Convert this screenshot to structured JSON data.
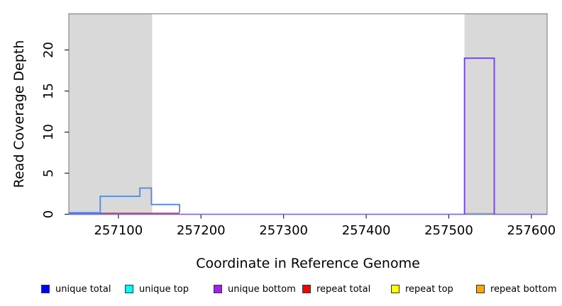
{
  "chart_data": {
    "type": "step-coverage",
    "title": "",
    "xlabel": "Coordinate in Reference Genome",
    "ylabel": "Read Coverage Depth",
    "xlim": [
      257040,
      257619
    ],
    "ylim": [
      0,
      24.4
    ],
    "x_ticks": [
      "257100",
      "257200",
      "257300",
      "257400",
      "257500",
      "257600"
    ],
    "x_tick_values": [
      257100,
      257200,
      257300,
      257400,
      257500,
      257600
    ],
    "y_ticks": [
      "0",
      "5",
      "10",
      "15",
      "20"
    ],
    "y_tick_values": [
      0,
      5,
      10,
      15,
      20
    ],
    "grid": false,
    "legend_position": "bottom",
    "border_color": "#888888",
    "shaded_regions": [
      {
        "name": "left-gray-region",
        "x0": 257040,
        "x1": 257141,
        "color": "#d9d9d9"
      },
      {
        "name": "right-gray-region",
        "x0": 257519,
        "x1": 257619,
        "color": "#d9d9d9"
      }
    ],
    "series": [
      {
        "name": "zero-baseline-overlap",
        "color": "#7463ea",
        "points": [
          [
            257040,
            0
          ],
          [
            257619,
            0
          ]
        ]
      },
      {
        "name": "repeat-total-zero-line",
        "color": "#e0334d",
        "points": [
          [
            257040,
            0
          ],
          [
            257174,
            0
          ]
        ]
      },
      {
        "name": "top-bottom-overlap-zero-line",
        "color": "#6fc06f",
        "points": [
          [
            257519,
            0
          ],
          [
            257555,
            0
          ]
        ]
      },
      {
        "name": "unique-total-steps",
        "color": "#4e86ec",
        "points": [
          [
            257040,
            0
          ],
          [
            257078,
            0
          ],
          [
            257078,
            2
          ],
          [
            257126,
            2
          ],
          [
            257126,
            3
          ],
          [
            257140,
            3
          ],
          [
            257140,
            1
          ],
          [
            257174,
            1
          ],
          [
            257174,
            0
          ]
        ]
      },
      {
        "name": "unique-bottom-bar",
        "color": "#6d3bf0",
        "points": [
          [
            257519,
            0
          ],
          [
            257519,
            19
          ],
          [
            257555,
            19
          ],
          [
            257555,
            0
          ]
        ]
      }
    ]
  },
  "legend": {
    "items": [
      {
        "label": "unique total",
        "color": "#0000ff"
      },
      {
        "label": "unique top",
        "color": "#00ffff"
      },
      {
        "label": "unique bottom",
        "color": "#a020f0"
      },
      {
        "label": "repeat total",
        "color": "#ff0000"
      },
      {
        "label": "repeat top",
        "color": "#ffff00"
      },
      {
        "label": "repeat bottom",
        "color": "#ffa500"
      }
    ]
  }
}
